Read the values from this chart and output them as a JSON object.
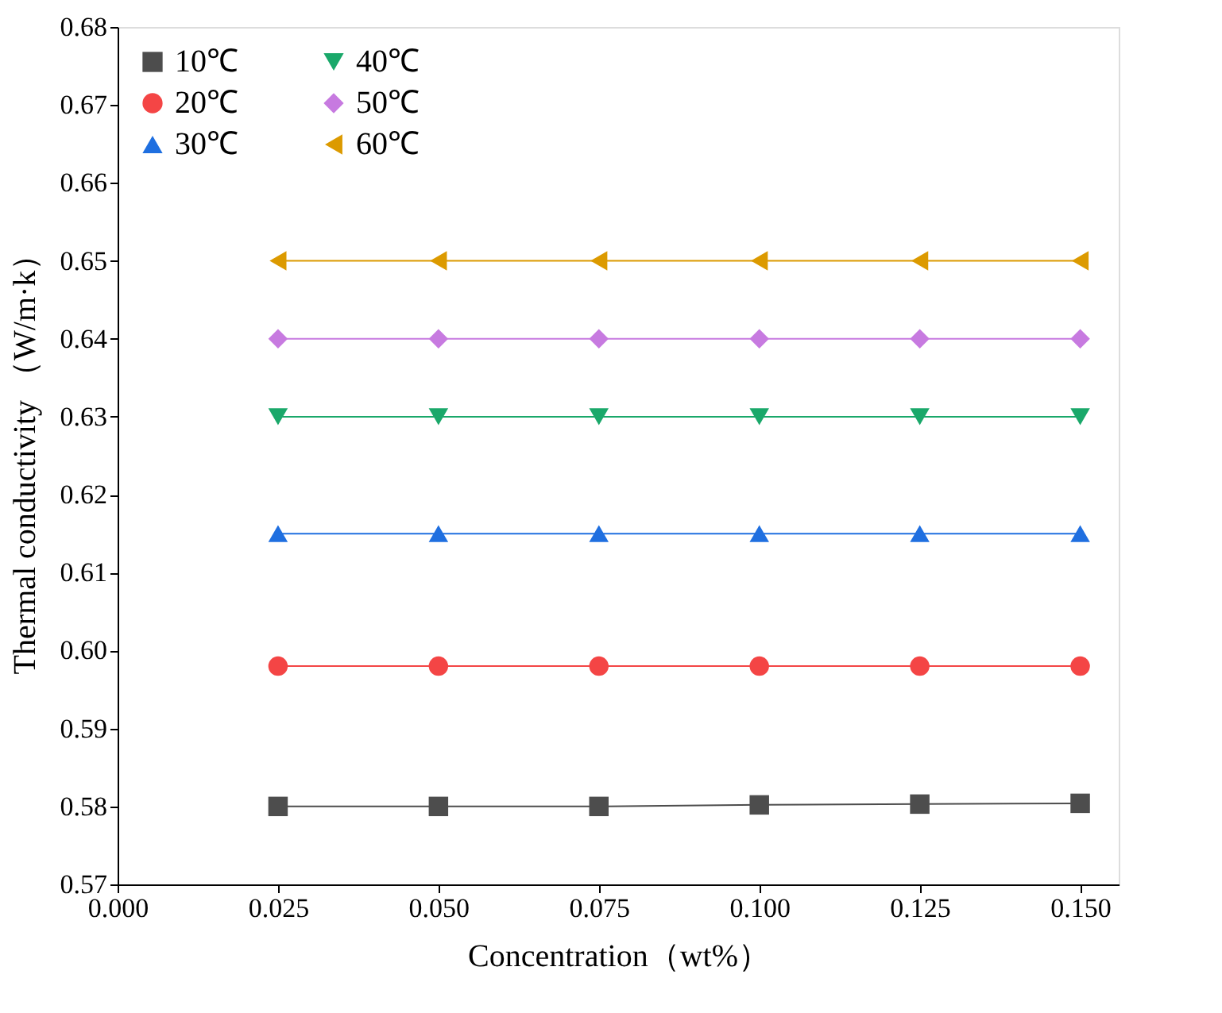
{
  "chart_data": {
    "type": "line",
    "xlabel": "Concentration（wt%）",
    "ylabel": "Thermal conductivity （W/m·k）",
    "x": [
      0.025,
      0.05,
      0.075,
      0.1,
      0.125,
      0.15
    ],
    "xlim": [
      0,
      0.156
    ],
    "xticks": [
      {
        "value": 0,
        "label": "0.000"
      },
      {
        "value": 0.025,
        "label": "0.025"
      },
      {
        "value": 0.05,
        "label": "0.050"
      },
      {
        "value": 0.075,
        "label": "0.075"
      },
      {
        "value": 0.1,
        "label": "0.100"
      },
      {
        "value": 0.125,
        "label": "0.125"
      },
      {
        "value": 0.15,
        "label": "0.150"
      }
    ],
    "ylim": [
      0.57,
      0.68
    ],
    "yticks": [
      {
        "value": 0.57,
        "label": "0.57"
      },
      {
        "value": 0.58,
        "label": "0.58"
      },
      {
        "value": 0.59,
        "label": "0.59"
      },
      {
        "value": 0.6,
        "label": "0.60"
      },
      {
        "value": 0.61,
        "label": "0.61"
      },
      {
        "value": 0.62,
        "label": "0.62"
      },
      {
        "value": 0.63,
        "label": "0.63"
      },
      {
        "value": 0.64,
        "label": "0.64"
      },
      {
        "value": 0.65,
        "label": "0.65"
      },
      {
        "value": 0.66,
        "label": "0.66"
      },
      {
        "value": 0.67,
        "label": "0.67"
      },
      {
        "value": 0.68,
        "label": "0.68"
      }
    ],
    "grid": false,
    "legend": "top left",
    "line_style": "solid",
    "series": [
      {
        "name": "10℃",
        "color": "#4d4d4d",
        "marker": "square",
        "values": [
          0.58,
          0.58,
          0.58,
          0.5802,
          0.5803,
          0.5804
        ]
      },
      {
        "name": "20℃",
        "color": "#f44545",
        "marker": "circle",
        "values": [
          0.598,
          0.598,
          0.598,
          0.598,
          0.598,
          0.598
        ]
      },
      {
        "name": "30℃",
        "color": "#1f6fe0",
        "marker": "triangle",
        "values": [
          0.615,
          0.615,
          0.615,
          0.615,
          0.615,
          0.615
        ]
      },
      {
        "name": "40℃",
        "color": "#1aa86a",
        "marker": "triangle-down",
        "values": [
          0.63,
          0.63,
          0.63,
          0.63,
          0.63,
          0.63
        ]
      },
      {
        "name": "50℃",
        "color": "#c77ae0",
        "marker": "diamond",
        "values": [
          0.64,
          0.64,
          0.64,
          0.64,
          0.64,
          0.64
        ]
      },
      {
        "name": "60℃",
        "color": "#dc9a00",
        "marker": "triangle-left",
        "values": [
          0.65,
          0.65,
          0.65,
          0.65,
          0.65,
          0.65
        ]
      }
    ]
  }
}
